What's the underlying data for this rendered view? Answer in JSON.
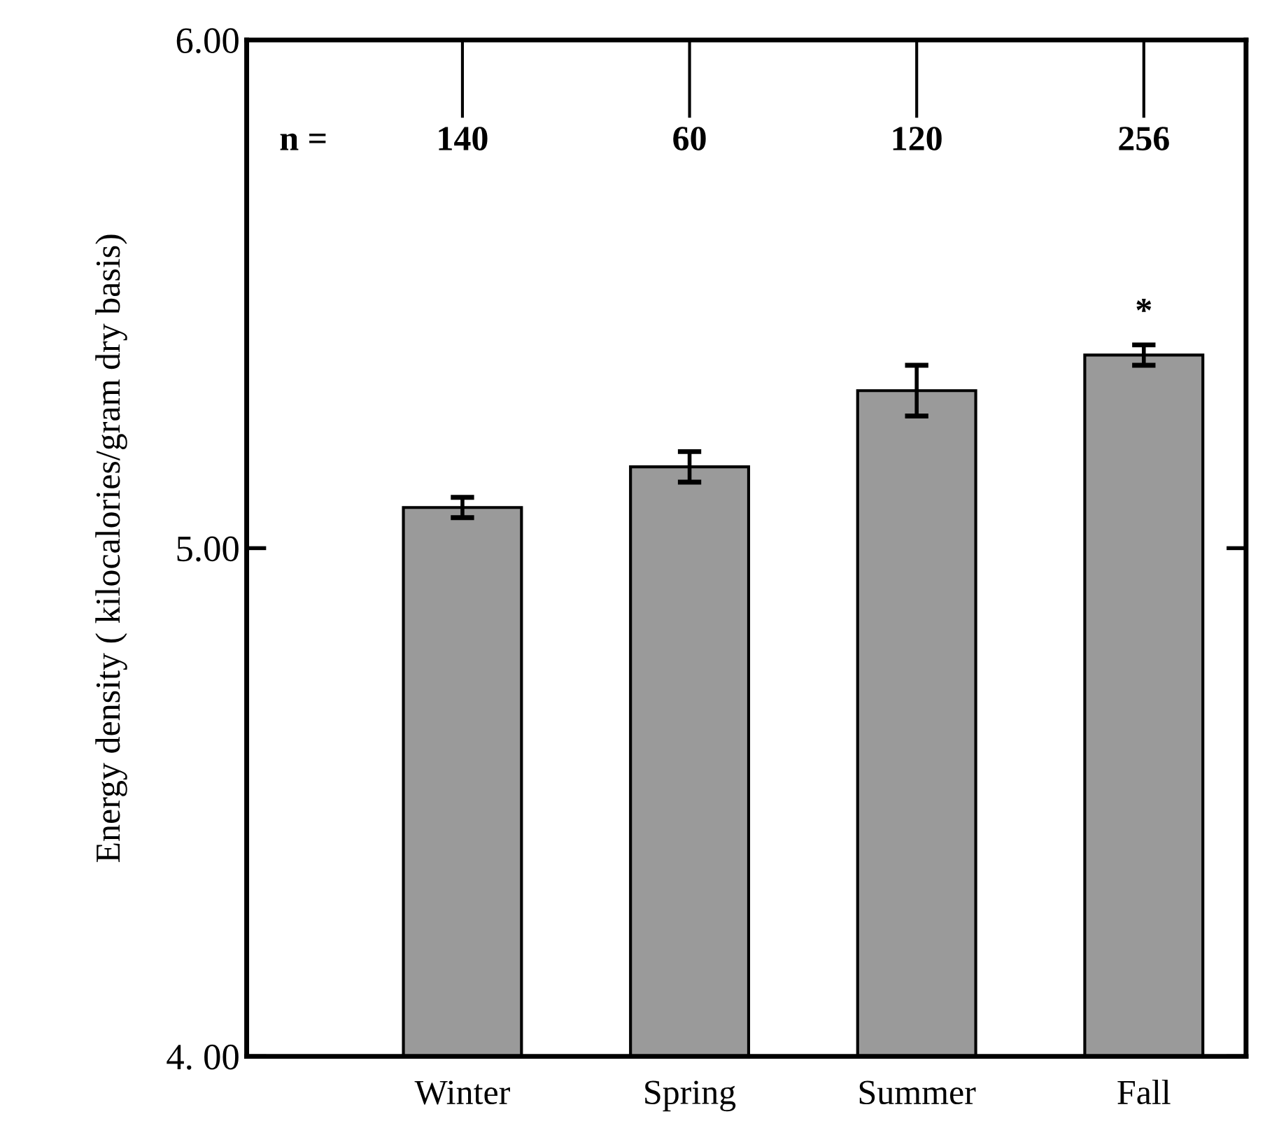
{
  "chart_data": {
    "type": "bar",
    "categories": [
      "Winter",
      "Spring",
      "Summer",
      "Fall"
    ],
    "values": [
      5.08,
      5.16,
      5.31,
      5.38
    ],
    "errors": [
      0.02,
      0.03,
      0.05,
      0.02
    ],
    "color": "#9a9a9a",
    "ylabel": "Energy density ( kilocalories/gram dry basis)",
    "ylim": [
      4.0,
      6.0
    ],
    "yticks": [
      {
        "value": 4.0,
        "label": "4. 00"
      },
      {
        "value": 5.0,
        "label": "5.00"
      },
      {
        "value": 6.0,
        "label": "6.00"
      }
    ],
    "grid": false,
    "annotations": [
      "n =",
      "140",
      "60",
      "120",
      "256",
      "*"
    ]
  }
}
